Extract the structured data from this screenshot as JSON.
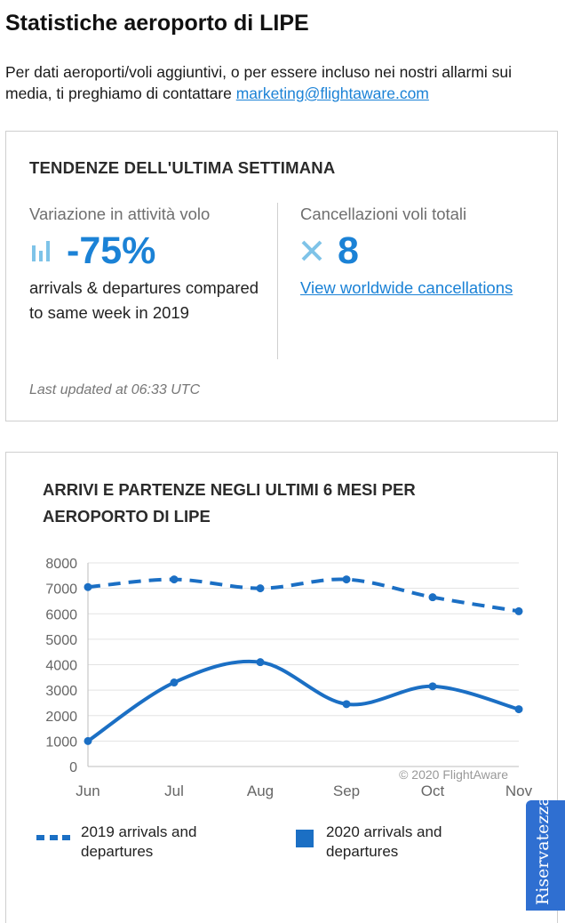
{
  "page": {
    "title": "Statistiche aeroporto di LIPE",
    "intro_text": "Per dati aeroporti/voli aggiuntivi, o per essere incluso nei nostri allarmi sui media, ti preghiamo di contattare ",
    "contact_email": "marketing@flightaware.com"
  },
  "trends": {
    "heading": "TENDENZE DELL'ULTIMA SETTIMANA",
    "activity": {
      "label": "Variazione in attività volo",
      "value": "-75%",
      "description": "arrivals & departures compared to same week in 2019",
      "icon": "bar-chart-icon"
    },
    "cancellations": {
      "label": "Cancellazioni voli totali",
      "value": "8",
      "link": "View worldwide cancellations",
      "icon": "x-icon"
    },
    "last_updated": "Last updated at 06:33 UTC"
  },
  "chart_section": {
    "title": "ARRIVI E PARTENZE NEGLI ULTIMI 6 MESI PER AEROPORTO DI LIPE",
    "credit": "© 2020 FlightAware"
  },
  "chart_data": {
    "type": "line",
    "categories": [
      "Jun",
      "Jul",
      "Aug",
      "Sep",
      "Oct",
      "Nov"
    ],
    "series": [
      {
        "name": "2019 arrivals and departures",
        "values": [
          7050,
          7350,
          7000,
          7350,
          6650,
          6100
        ],
        "style": "dashed",
        "color": "#1b6fc4"
      },
      {
        "name": "2020 arrivals and departures",
        "values": [
          1000,
          3300,
          4100,
          2450,
          3150,
          2250
        ],
        "style": "solid",
        "color": "#1b6fc4"
      }
    ],
    "y_ticks": [
      "0",
      "1000",
      "2000",
      "3000",
      "4000",
      "5000",
      "6000",
      "7000",
      "8000"
    ],
    "ylim": [
      0,
      8000
    ],
    "grid": true,
    "legend": "bottom"
  },
  "privacy_tab": {
    "label": "Riservatezza"
  },
  "colors": {
    "accent": "#1b82d6",
    "series": "#1b6fc4",
    "privacy_tab": "#2f6fd1"
  }
}
